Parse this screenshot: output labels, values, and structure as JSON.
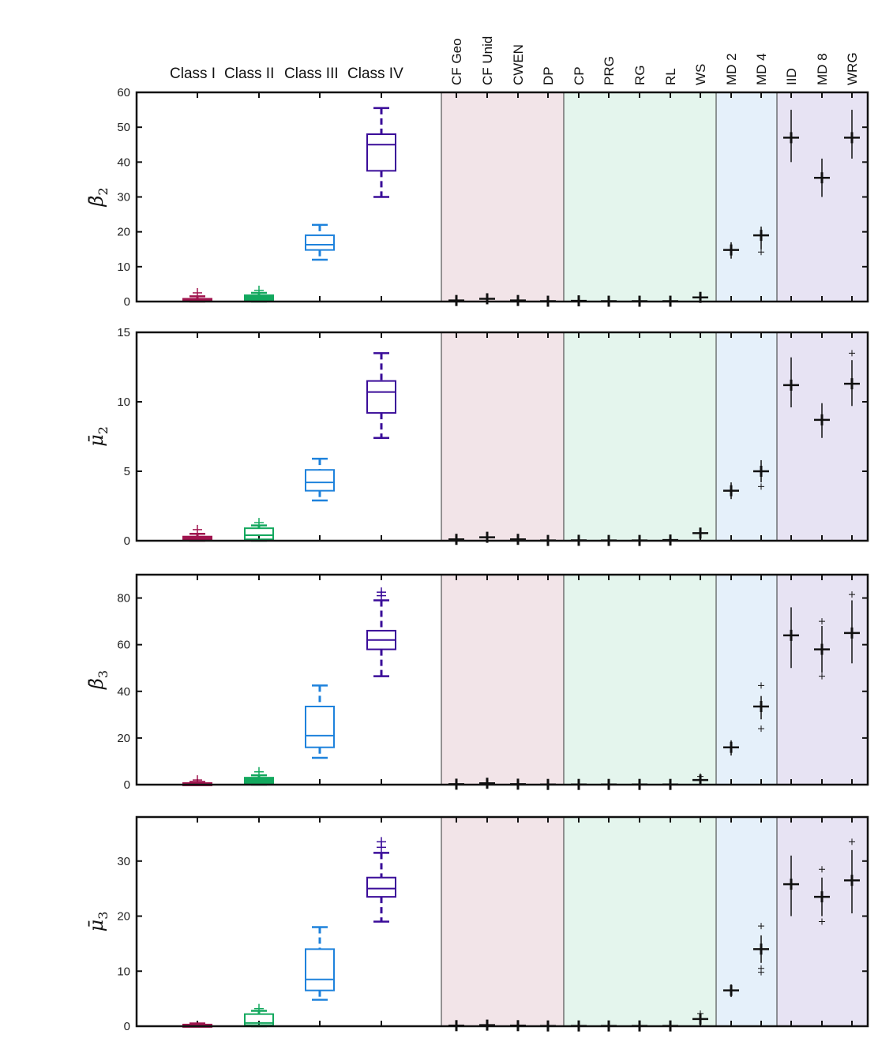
{
  "header": {
    "class_labels": [
      "Class I",
      "Class II",
      "Class III",
      "Class IV"
    ],
    "model_labels": [
      "CF Geo",
      "CF Unid",
      "CWEN",
      "DP",
      "CP",
      "PRG",
      "RG",
      "RL",
      "WS",
      "MD 2",
      "MD 4",
      "IID",
      "MD 8",
      "WRG"
    ]
  },
  "colors": {
    "class_colors": [
      "#a0144e",
      "#13a85e",
      "#1e82dc",
      "#3a0c99"
    ],
    "band_pink": "#f2e4e8",
    "band_green": "#e4f5ed",
    "band_blue": "#e5f0fa",
    "band_purple": "#e7e3f3",
    "model_marker": "#111111"
  },
  "chart_data": [
    {
      "type": "box",
      "ylabel_symbol": "β̄",
      "ylabel_sub": "2",
      "ylim": [
        0,
        60
      ],
      "yticks": [
        0,
        10,
        20,
        30,
        40,
        50,
        60
      ],
      "classes": [
        {
          "name": "Class I",
          "q1": 0.1,
          "median": 0.4,
          "q3": 0.8,
          "whisker_low": 0,
          "whisker_high": 1.5,
          "outliers": [
            2.5
          ]
        },
        {
          "name": "Class II",
          "q1": 0.2,
          "median": 0.8,
          "q3": 1.8,
          "whisker_low": 0,
          "whisker_high": 2.5,
          "outliers": [
            3.2
          ]
        },
        {
          "name": "Class III",
          "q1": 14.8,
          "median": 16.3,
          "q3": 19.0,
          "whisker_low": 12.0,
          "whisker_high": 22.0,
          "outliers": []
        },
        {
          "name": "Class IV",
          "q1": 37.5,
          "median": 45.0,
          "q3": 48.0,
          "whisker_low": 30.0,
          "whisker_high": 55.5,
          "outliers": []
        }
      ],
      "models": [
        {
          "name": "CF Geo",
          "value": 0.3,
          "low": 0.1,
          "high": 0.5
        },
        {
          "name": "CF Unid",
          "value": 0.8,
          "low": 0.3,
          "high": 1.5
        },
        {
          "name": "CWEN",
          "value": 0.3,
          "low": 0.1,
          "high": 0.5
        },
        {
          "name": "DP",
          "value": 0.1,
          "low": 0,
          "high": 0.2
        },
        {
          "name": "CP",
          "value": 0.2,
          "low": 0,
          "high": 0.4
        },
        {
          "name": "PRG",
          "value": 0.1,
          "low": 0,
          "high": 0.2
        },
        {
          "name": "RG",
          "value": 0.1,
          "low": 0,
          "high": 0.2
        },
        {
          "name": "RL",
          "value": 0.1,
          "low": 0,
          "high": 0.2
        },
        {
          "name": "WS",
          "value": 1.2,
          "low": 0.5,
          "high": 1.8
        },
        {
          "name": "MD 2",
          "value": 14.8,
          "low": 12.3,
          "high": 17.0
        },
        {
          "name": "MD 4",
          "value": 19.0,
          "low": 15.0,
          "high": 21.5,
          "outliers": [
            14.2
          ]
        },
        {
          "name": "IID",
          "value": 47.0,
          "low": 40.0,
          "high": 55.0
        },
        {
          "name": "MD 8",
          "value": 35.5,
          "low": 30.0,
          "high": 41.0
        },
        {
          "name": "WRG",
          "value": 47.0,
          "low": 41.0,
          "high": 55.0
        }
      ]
    },
    {
      "type": "box",
      "ylabel_symbol": "μ̄",
      "ylabel_sub": "2",
      "ylim": [
        0,
        15
      ],
      "yticks": [
        0,
        5,
        10,
        15
      ],
      "classes": [
        {
          "name": "Class I",
          "q1": 0.05,
          "median": 0.15,
          "q3": 0.3,
          "whisker_low": 0,
          "whisker_high": 0.5,
          "outliers": [
            0.8
          ]
        },
        {
          "name": "Class II",
          "q1": 0.1,
          "median": 0.4,
          "q3": 0.9,
          "whisker_low": 0,
          "whisker_high": 1.1,
          "outliers": [
            1.3
          ]
        },
        {
          "name": "Class III",
          "q1": 3.6,
          "median": 4.2,
          "q3": 5.1,
          "whisker_low": 2.9,
          "whisker_high": 5.9,
          "outliers": []
        },
        {
          "name": "Class IV",
          "q1": 9.2,
          "median": 10.7,
          "q3": 11.5,
          "whisker_low": 7.4,
          "whisker_high": 13.5,
          "outliers": []
        }
      ],
      "models": [
        {
          "name": "CF Geo",
          "value": 0.1,
          "low": 0,
          "high": 0.2
        },
        {
          "name": "CF Unid",
          "value": 0.25,
          "low": 0.1,
          "high": 0.55
        },
        {
          "name": "CWEN",
          "value": 0.1,
          "low": 0,
          "high": 0.2
        },
        {
          "name": "DP",
          "value": 0.02,
          "low": 0,
          "high": 0.05
        },
        {
          "name": "CP",
          "value": 0.03,
          "low": 0,
          "high": 0.06
        },
        {
          "name": "PRG",
          "value": 0.02,
          "low": 0,
          "high": 0.05
        },
        {
          "name": "RG",
          "value": 0.02,
          "low": 0,
          "high": 0.05
        },
        {
          "name": "RL",
          "value": 0.05,
          "low": 0,
          "high": 0.1
        },
        {
          "name": "WS",
          "value": 0.55,
          "low": 0.3,
          "high": 0.8
        },
        {
          "name": "MD 2",
          "value": 3.6,
          "low": 3.0,
          "high": 4.2
        },
        {
          "name": "MD 4",
          "value": 5.0,
          "low": 4.2,
          "high": 5.8,
          "outliers": [
            3.9
          ]
        },
        {
          "name": "IID",
          "value": 11.2,
          "low": 9.6,
          "high": 13.2
        },
        {
          "name": "MD 8",
          "value": 8.7,
          "low": 7.4,
          "high": 9.9
        },
        {
          "name": "WRG",
          "value": 11.3,
          "low": 9.7,
          "high": 13.0,
          "outliers": [
            13.5
          ]
        }
      ]
    },
    {
      "type": "box",
      "ylabel_symbol": "β̄",
      "ylabel_sub": "3",
      "ylim": [
        0,
        90
      ],
      "yticks": [
        0,
        20,
        40,
        60,
        80
      ],
      "classes": [
        {
          "name": "Class I",
          "q1": 0.1,
          "median": 0.3,
          "q3": 0.7,
          "whisker_low": 0,
          "whisker_high": 1.2,
          "outliers": [
            2.0
          ]
        },
        {
          "name": "Class II",
          "q1": 0.5,
          "median": 1.5,
          "q3": 3.0,
          "whisker_low": 0,
          "whisker_high": 4.0,
          "outliers": [
            5.5
          ]
        },
        {
          "name": "Class III",
          "q1": 16.0,
          "median": 21.0,
          "q3": 33.5,
          "whisker_low": 11.5,
          "whisker_high": 42.5,
          "outliers": []
        },
        {
          "name": "Class IV",
          "q1": 58.0,
          "median": 62.0,
          "q3": 66.0,
          "whisker_low": 46.5,
          "whisker_high": 79.0,
          "outliers": [
            81.0,
            82.5
          ]
        }
      ],
      "models": [
        {
          "name": "CF Geo",
          "value": 0.2,
          "low": 0,
          "high": 0.5
        },
        {
          "name": "CF Unid",
          "value": 0.6,
          "low": 0.2,
          "high": 1.2
        },
        {
          "name": "CWEN",
          "value": 0.2,
          "low": 0,
          "high": 0.5
        },
        {
          "name": "DP",
          "value": 0.1,
          "low": 0,
          "high": 0.3
        },
        {
          "name": "CP",
          "value": 0.1,
          "low": 0,
          "high": 0.3
        },
        {
          "name": "PRG",
          "value": 0.1,
          "low": 0,
          "high": 0.3
        },
        {
          "name": "RG",
          "value": 0.1,
          "low": 0,
          "high": 0.3
        },
        {
          "name": "RL",
          "value": 0.1,
          "low": 0,
          "high": 0.3
        },
        {
          "name": "WS",
          "value": 2.0,
          "low": 1.0,
          "high": 3.0,
          "outliers": [
            3.5
          ]
        },
        {
          "name": "MD 2",
          "value": 16.0,
          "low": 12.5,
          "high": 19.0
        },
        {
          "name": "MD 4",
          "value": 33.5,
          "low": 28.0,
          "high": 38.0,
          "outliers": [
            24.0,
            42.5
          ]
        },
        {
          "name": "IID",
          "value": 64.0,
          "low": 50.0,
          "high": 76.0
        },
        {
          "name": "MD 8",
          "value": 58.0,
          "low": 48.0,
          "high": 68.0,
          "outliers": [
            46.5,
            70.0
          ]
        },
        {
          "name": "WRG",
          "value": 65.0,
          "low": 52.0,
          "high": 79.0,
          "outliers": [
            81.5
          ]
        }
      ]
    },
    {
      "type": "box",
      "ylabel_symbol": "μ̄",
      "ylabel_sub": "3",
      "ylim": [
        0,
        38
      ],
      "yticks": [
        0,
        10,
        20,
        30
      ],
      "classes": [
        {
          "name": "Class I",
          "q1": 0.05,
          "median": 0.1,
          "q3": 0.3,
          "whisker_low": 0,
          "whisker_high": 0.5,
          "outliers": []
        },
        {
          "name": "Class II",
          "q1": 0.2,
          "median": 0.6,
          "q3": 2.2,
          "whisker_low": 0,
          "whisker_high": 2.8,
          "outliers": [
            3.2
          ]
        },
        {
          "name": "Class III",
          "q1": 6.5,
          "median": 8.5,
          "q3": 14.0,
          "whisker_low": 4.8,
          "whisker_high": 18.0,
          "outliers": []
        },
        {
          "name": "Class IV",
          "q1": 23.5,
          "median": 25.0,
          "q3": 27.0,
          "whisker_low": 19.0,
          "whisker_high": 31.5,
          "outliers": [
            32.5,
            33.5
          ]
        }
      ],
      "models": [
        {
          "name": "CF Geo",
          "value": 0.1,
          "low": 0,
          "high": 0.3
        },
        {
          "name": "CF Unid",
          "value": 0.2,
          "low": 0,
          "high": 0.5
        },
        {
          "name": "CWEN",
          "value": 0.1,
          "low": 0,
          "high": 0.3
        },
        {
          "name": "DP",
          "value": 0.05,
          "low": 0,
          "high": 0.1
        },
        {
          "name": "CP",
          "value": 0.05,
          "low": 0,
          "high": 0.1
        },
        {
          "name": "PRG",
          "value": 0.05,
          "low": 0,
          "high": 0.1
        },
        {
          "name": "RG",
          "value": 0.05,
          "low": 0,
          "high": 0.1
        },
        {
          "name": "RL",
          "value": 0.05,
          "low": 0,
          "high": 0.1
        },
        {
          "name": "WS",
          "value": 1.3,
          "low": 0.7,
          "high": 1.9,
          "outliers": [
            2.3
          ]
        },
        {
          "name": "MD 2",
          "value": 6.5,
          "low": 5.3,
          "high": 7.6
        },
        {
          "name": "MD 4",
          "value": 14.0,
          "low": 11.5,
          "high": 16.5,
          "outliers": [
            9.8,
            10.5,
            18.2
          ]
        },
        {
          "name": "IID",
          "value": 25.8,
          "low": 20.0,
          "high": 31.0
        },
        {
          "name": "MD 8",
          "value": 23.5,
          "low": 20.0,
          "high": 27.0,
          "outliers": [
            19.0,
            28.5
          ]
        },
        {
          "name": "WRG",
          "value": 26.5,
          "low": 20.5,
          "high": 32.0,
          "outliers": [
            33.5
          ]
        }
      ]
    }
  ]
}
